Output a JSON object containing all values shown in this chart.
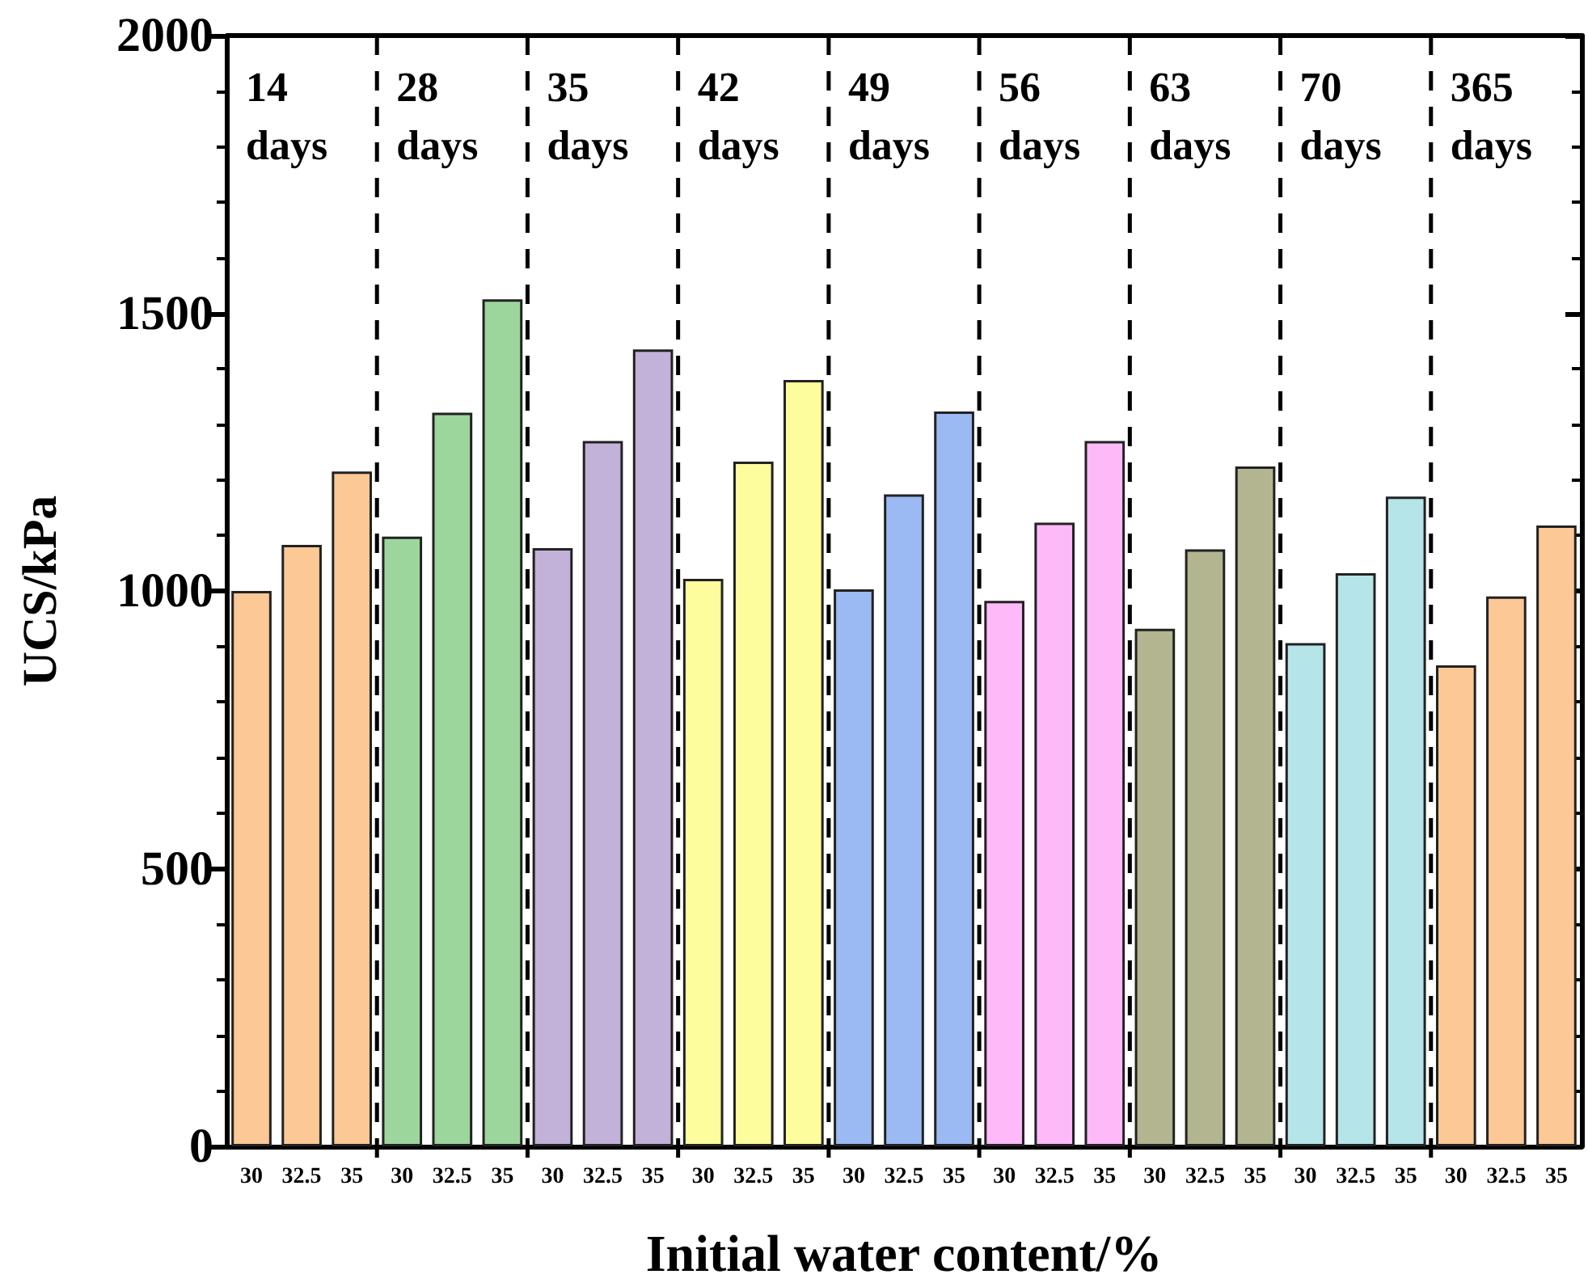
{
  "chart_data": {
    "type": "bar",
    "xlabel": "Initial water content/%",
    "ylabel": "UCS/kPa",
    "categories": [
      "30",
      "32.5",
      "35",
      "30",
      "32.5",
      "35",
      "30",
      "32.5",
      "35",
      "30",
      "32.5",
      "35",
      "30",
      "32.5",
      "35",
      "30",
      "32.5",
      "35",
      "30",
      "32.5",
      "35",
      "30",
      "32.5",
      "35",
      "30",
      "32.5",
      "35"
    ],
    "values": [
      1000,
      1083,
      1215,
      1098,
      1321,
      1525,
      1077,
      1270,
      1435,
      1022,
      1233,
      1380,
      1003,
      1174,
      1323,
      982,
      1123,
      1270,
      932,
      1075,
      1224,
      906,
      1032,
      1170,
      866,
      990,
      1118
    ],
    "colors": [
      "#fcc896",
      "#fcc896",
      "#fcc896",
      "#9dd69c",
      "#9dd69c",
      "#9dd69c",
      "#c2b1d8",
      "#c2b1d8",
      "#c2b1d8",
      "#fdfd9d",
      "#fdfd9d",
      "#fdfd9d",
      "#9bb9f3",
      "#9bb9f3",
      "#9bb9f3",
      "#fdb9f8",
      "#fdb9f8",
      "#fdb9f8",
      "#b2b58f",
      "#b2b58f",
      "#b2b58f",
      "#b5e4e9",
      "#b5e4e9",
      "#b5e4e9",
      "#fcc896",
      "#fcc896",
      "#fcc896"
    ],
    "annotations": [
      "14 days",
      "28 days",
      "35 days",
      "42 days",
      "49 days",
      "56 days",
      "63 days",
      "70 days",
      "365 days"
    ],
    "ylim": [
      0,
      2000
    ],
    "yticks": [
      0,
      500,
      1000,
      1500,
      2000
    ],
    "grid": false
  }
}
